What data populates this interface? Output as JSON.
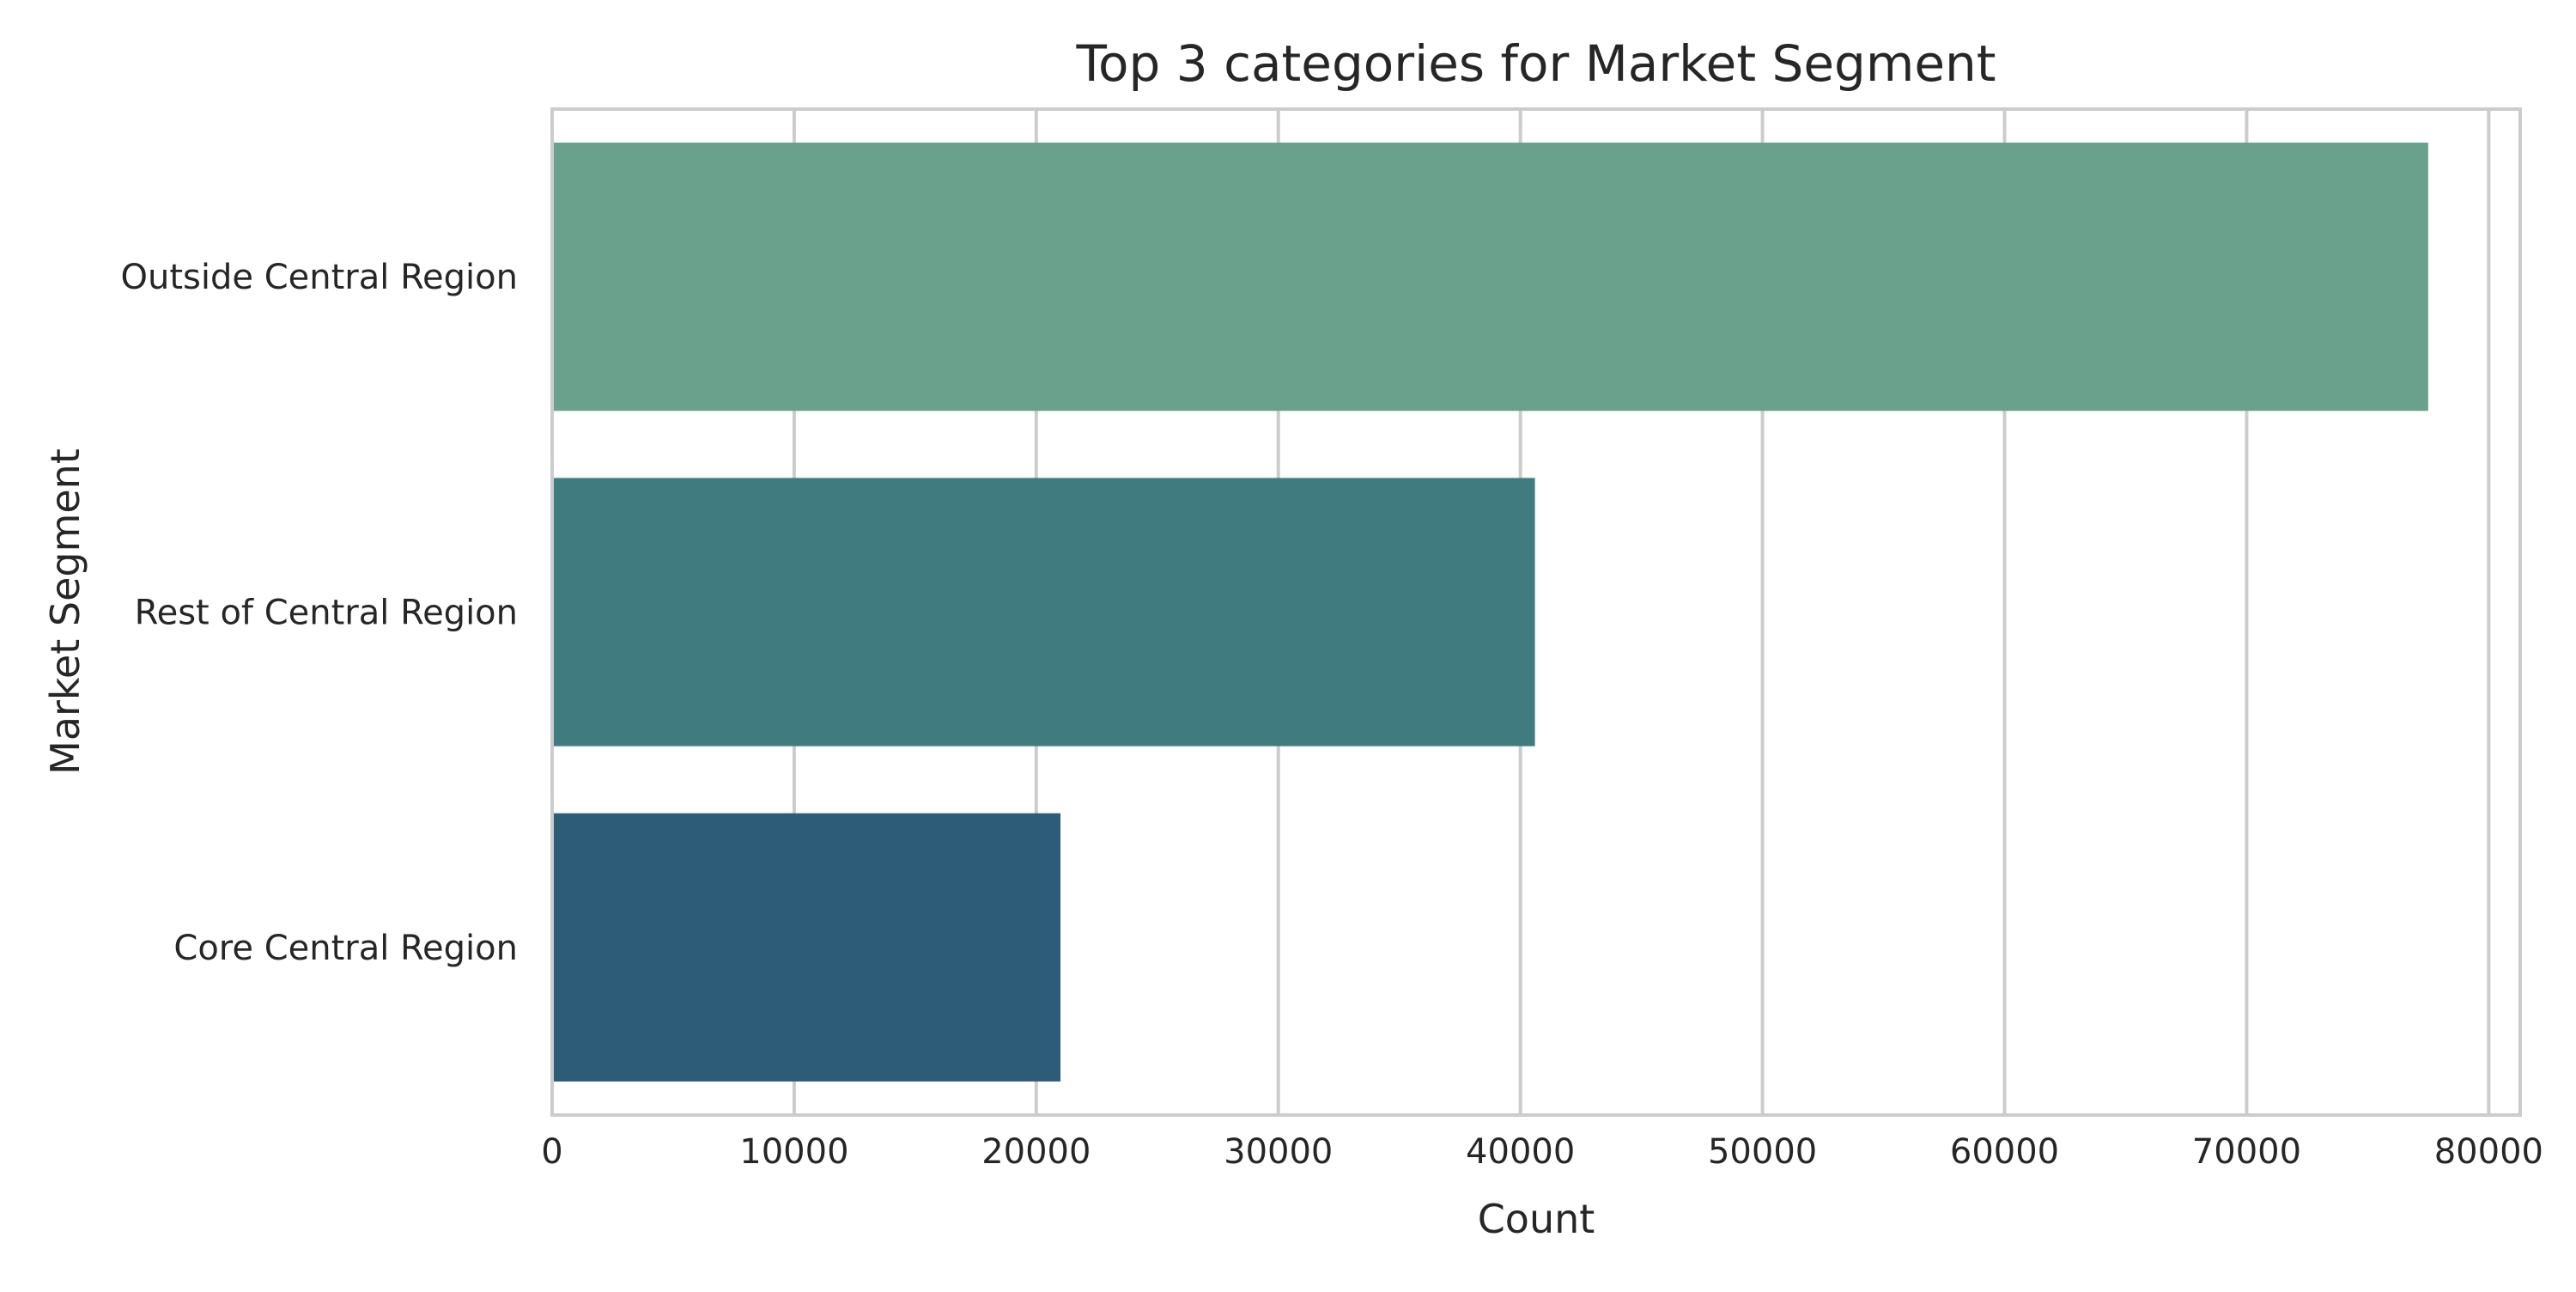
{
  "chart_data": {
    "type": "bar",
    "orientation": "horizontal",
    "title": "Top 3 categories for Market Segment",
    "xlabel": "Count",
    "ylabel": "Market Segment",
    "categories": [
      "Outside Central Region",
      "Rest of Central Region",
      "Core Central Region"
    ],
    "values": [
      77500,
      40600,
      21000
    ],
    "colors": [
      "#69a18d",
      "#407b80",
      "#2d5c79"
    ],
    "xlim": [
      0,
      81300
    ],
    "xticks": [
      0,
      10000,
      20000,
      30000,
      40000,
      50000,
      60000,
      70000,
      80000
    ],
    "grid": true,
    "grid_axis": "x",
    "legend": "none"
  }
}
